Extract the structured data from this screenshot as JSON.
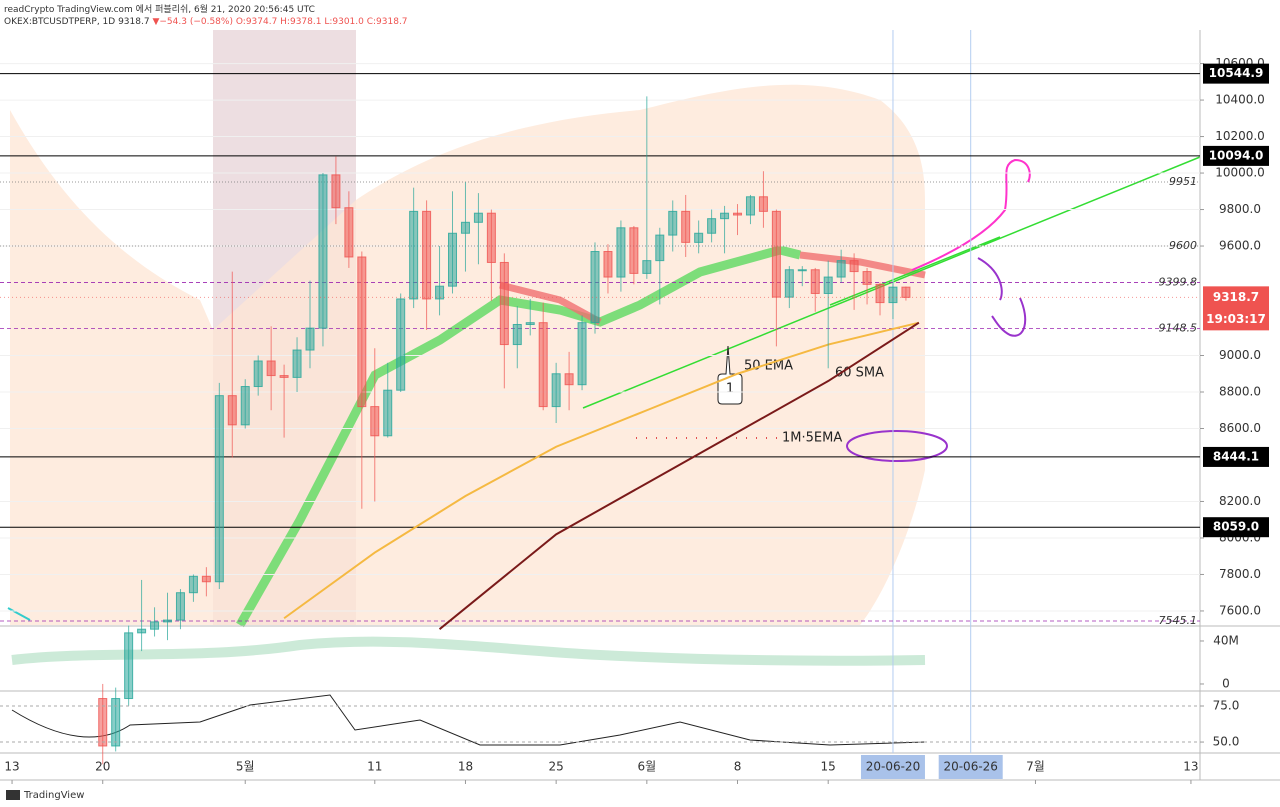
{
  "header": {
    "line1": "readCrypto TradingView.com 에서 퍼블리쉬, 6월 21, 2020 20:56:45 UTC",
    "symbol": "OKEX:BTCUSDTPERP, 1D",
    "last": "9318.7",
    "arrow": "▼",
    "change": "−54.3 (−0.58%)",
    "ohlc": "O:9374.7 H:9378.1 L:9301.0 C:9318.7"
  },
  "footer": "TradingView",
  "chart_data": {
    "type": "candlestick",
    "xlim": [
      -0.93,
      91.7
    ],
    "xticks": [
      {
        "value": 0,
        "label": "13"
      },
      {
        "value": 7,
        "label": "20"
      },
      {
        "value": 18,
        "label": "5월"
      },
      {
        "value": 28,
        "label": "11"
      },
      {
        "value": 35,
        "label": "18"
      },
      {
        "value": 42,
        "label": "25"
      },
      {
        "value": 49,
        "label": "6월"
      },
      {
        "value": 56,
        "label": "8"
      },
      {
        "value": 63,
        "label": "15"
      },
      {
        "value": 79,
        "label": "7월"
      },
      {
        "value": 91,
        "label": "13"
      }
    ],
    "highlighted_dates": [
      {
        "value": 68,
        "label": "20-06-20"
      },
      {
        "value": 74,
        "label": "20-06-26"
      }
    ],
    "ylim": [
      7523,
      10784
    ],
    "yticks": [
      {
        "value": 7600,
        "label": "7600.0"
      },
      {
        "value": 7800,
        "label": "7800.0"
      },
      {
        "value": 8000,
        "label": "8000.0"
      },
      {
        "value": 8200,
        "label": "8200.0"
      },
      {
        "value": 8600,
        "label": "8600.0"
      },
      {
        "value": 8800,
        "label": "8800.0"
      },
      {
        "value": 9000,
        "label": "9000.0"
      },
      {
        "value": 9600,
        "label": "9600.0"
      },
      {
        "value": 9800,
        "label": "9800.0"
      },
      {
        "value": 10000,
        "label": "10000.0"
      },
      {
        "value": 10200,
        "label": "10200.0"
      },
      {
        "value": 10400,
        "label": "10400.0"
      },
      {
        "value": 10600,
        "label": "10600.0"
      }
    ],
    "up_color": "#26a69a",
    "down_color": "#ef5350",
    "x": [
      7,
      8,
      9,
      10,
      11,
      12,
      13,
      14,
      15,
      16,
      17,
      18,
      19,
      20,
      21,
      22,
      23,
      24,
      25,
      26,
      27,
      28,
      29,
      30,
      31,
      32,
      33,
      34,
      35,
      36,
      37,
      38,
      39,
      40,
      41,
      42,
      43,
      44,
      45,
      46,
      47,
      48,
      49,
      50,
      51,
      52,
      53,
      54,
      55,
      56,
      57,
      58,
      59,
      60,
      61,
      62,
      63,
      64,
      65,
      66,
      67,
      68,
      69
    ],
    "open": [
      7120,
      6860,
      7120,
      7480,
      7500,
      7540,
      7550,
      7700,
      7790,
      7760,
      8780,
      8620,
      8830,
      8970,
      8890,
      8880,
      9030,
      9150,
      9990,
      9810,
      9540,
      8720,
      8560,
      8810,
      9310,
      9790,
      9310,
      9380,
      9670,
      9730,
      9780,
      9510,
      9060,
      9170,
      9180,
      8720,
      8900,
      8840,
      9180,
      9570,
      9430,
      9700,
      9450,
      9520,
      9660,
      9790,
      9620,
      9670,
      9750,
      9780,
      9770,
      9870,
      9790,
      9320,
      9470,
      9470,
      9340,
      9430,
      9520,
      9460,
      9390,
      9290,
      9374.7
    ],
    "high": [
      7200,
      7180,
      7520,
      7770,
      7620,
      7700,
      7720,
      7800,
      7840,
      8850,
      9460,
      8870,
      9000,
      9160,
      8950,
      9100,
      9410,
      10000,
      10090,
      9900,
      9570,
      9040,
      8960,
      9340,
      9920,
      9850,
      9600,
      9900,
      9950,
      9890,
      9800,
      9560,
      9270,
      9310,
      9290,
      8960,
      9020,
      9220,
      9620,
      9610,
      9740,
      9710,
      10420,
      9700,
      9850,
      9880,
      9740,
      9800,
      9820,
      9830,
      9880,
      10010,
      9800,
      9490,
      9490,
      9480,
      9520,
      9580,
      9560,
      9480,
      9400,
      9400,
      9378.1
    ],
    "low": [
      6760,
      6830,
      7080,
      7380,
      7460,
      7440,
      7500,
      7650,
      7680,
      7720,
      8440,
      8600,
      8780,
      8700,
      8550,
      8800,
      8930,
      9050,
      9720,
      9480,
      8160,
      8200,
      8550,
      8800,
      9260,
      9140,
      9220,
      9340,
      9460,
      9500,
      9300,
      8820,
      8930,
      9110,
      8700,
      8630,
      8700,
      8810,
      9120,
      9340,
      9350,
      9390,
      9420,
      9280,
      9570,
      9540,
      9560,
      9620,
      9560,
      9660,
      9720,
      9700,
      9050,
      9260,
      9380,
      9240,
      8930,
      9400,
      9250,
      9280,
      9220,
      9200,
      9301
    ],
    "close": [
      6860,
      7120,
      7480,
      7500,
      7540,
      7550,
      7700,
      7790,
      7760,
      8780,
      8620,
      8830,
      8970,
      8890,
      8880,
      9030,
      9150,
      9990,
      9810,
      9540,
      8720,
      8560,
      8810,
      9310,
      9790,
      9310,
      9380,
      9670,
      9730,
      9780,
      9510,
      9060,
      9170,
      9180,
      8720,
      8900,
      8840,
      9180,
      9570,
      9430,
      9700,
      9450,
      9520,
      9660,
      9790,
      9620,
      9670,
      9750,
      9780,
      9770,
      9870,
      9790,
      9320,
      9470,
      9470,
      9340,
      9430,
      9520,
      9460,
      9390,
      9290,
      9374.7,
      9318.7
    ],
    "lines": [
      {
        "name": "50 EMA",
        "color": "#f5b942",
        "x": [
          21,
          28,
          35,
          42,
          49,
          56,
          63,
          70
        ],
        "values": [
          7560,
          7920,
          8230,
          8500,
          8700,
          8900,
          9060,
          9180
        ]
      },
      {
        "name": "60 SMA",
        "color": "#7a1a1a",
        "x": [
          33,
          42,
          49,
          56,
          63,
          70
        ],
        "values": [
          7500,
          8020,
          8300,
          8580,
          8860,
          9180
        ]
      }
    ],
    "annotations": [
      "1M·5EMA",
      "1"
    ],
    "levels": [
      {
        "value": 10544.9,
        "label": "10544.9",
        "color": "#000000",
        "style": "solid",
        "label_style": "box"
      },
      {
        "value": 10094.0,
        "label": "10094.0",
        "color": "#000000",
        "style": "solid",
        "label_style": "box"
      },
      {
        "value": 9951,
        "label": "9951",
        "color": "#777777",
        "style": "dotted",
        "label_style": "italic"
      },
      {
        "value": 9600,
        "label": "9600",
        "color": "#777777",
        "style": "dotted",
        "label_style": "italic"
      },
      {
        "value": 9399.8,
        "label": "9399.8",
        "color": "#9c27b0",
        "style": "dashed",
        "label_style": "italic"
      },
      {
        "value": 9148.5,
        "label": "9148.5",
        "color": "#9c27b0",
        "style": "dashed",
        "label_style": "italic"
      },
      {
        "value": 8444.1,
        "label": "8444.1",
        "color": "#000000",
        "style": "solid",
        "label_style": "box"
      },
      {
        "value": 8059.0,
        "label": "8059.0",
        "color": "#000000",
        "style": "solid",
        "label_style": "box"
      },
      {
        "value": 7545.1,
        "label": "7545.1",
        "color": "#9c27b0",
        "style": "dashed",
        "label_style": "italic"
      }
    ],
    "last_price": {
      "value": 9318.7,
      "label": "9318.7",
      "countdown": "19:03:17",
      "color": "#ef5350"
    },
    "volume_pane": {
      "ylim": [
        -5600000,
        53000000
      ],
      "yticks": [
        {
          "value": 40000000,
          "label": "40M"
        },
        0
      ]
    },
    "rsi_pane": {
      "ylim": [
        43.1,
        84.7
      ],
      "yticks": [
        {
          "value": 75,
          "label": "75.0"
        },
        {
          "value": 50,
          "label": "50.0"
        }
      ]
    }
  }
}
